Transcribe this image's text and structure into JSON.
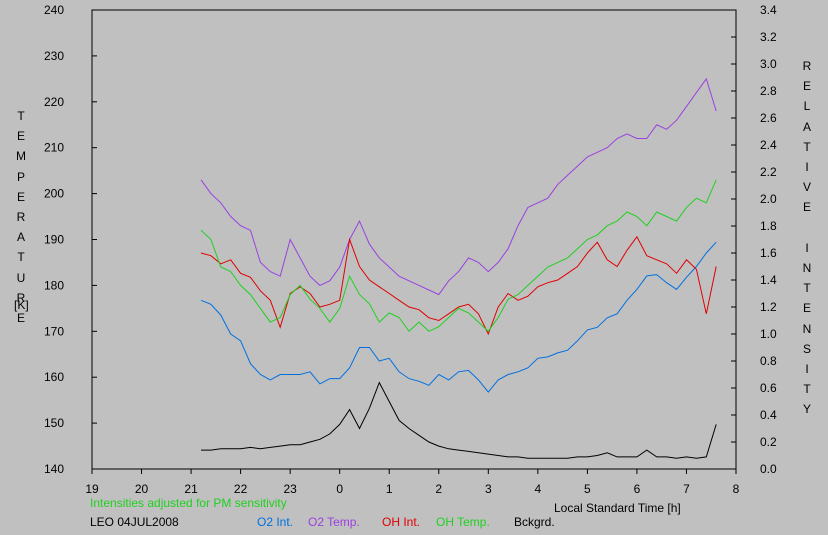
{
  "chart_data": {
    "type": "line",
    "station_label": "LEO 04JUL2008",
    "note": "Intensities adjusted for PM sensitivity",
    "xlabel": "Local Standard Time [h]",
    "ylabel_left": "TEMPERATURE",
    "ylabel_left_unit": "[K]",
    "ylabel_right": "RELATIVE INTENSITY",
    "x_ticks": [
      "19",
      "20",
      "21",
      "22",
      "23",
      "0",
      "1",
      "2",
      "3",
      "4",
      "5",
      "6",
      "7",
      "8"
    ],
    "xlim": [
      19,
      32
    ],
    "ylim_left": [
      140,
      240
    ],
    "ylim_right": [
      0,
      3.4
    ],
    "y_ticks_left": [
      "140",
      "150",
      "160",
      "170",
      "180",
      "190",
      "200",
      "210",
      "220",
      "230",
      "240"
    ],
    "y_ticks_right": [
      "0.0",
      "0.2",
      "0.4",
      "0.6",
      "0.8",
      "1.0",
      "1.2",
      "1.4",
      "1.6",
      "1.8",
      "2.0",
      "2.2",
      "2.4",
      "2.6",
      "2.8",
      "3.0",
      "3.2",
      "3.4"
    ],
    "series": [
      {
        "name": "O2 Int.",
        "axis": "right",
        "color": "#0070e0",
        "x": [
          21.2,
          21.4,
          21.6,
          21.8,
          22.0,
          22.2,
          22.4,
          22.6,
          22.8,
          23.0,
          23.2,
          23.4,
          23.6,
          23.8,
          24.0,
          24.2,
          24.4,
          24.6,
          24.8,
          25.0,
          25.2,
          25.4,
          25.6,
          25.8,
          26.0,
          26.2,
          26.4,
          26.6,
          26.8,
          27.0,
          27.2,
          27.4,
          27.6,
          27.8,
          28.0,
          28.2,
          28.4,
          28.6,
          28.8,
          29.0,
          29.2,
          29.4,
          29.6,
          29.8,
          30.0,
          30.2,
          30.4,
          30.6,
          30.8,
          31.0,
          31.2,
          31.4,
          31.6
        ],
        "y": [
          1.25,
          1.22,
          1.14,
          1.0,
          0.95,
          0.78,
          0.7,
          0.66,
          0.7,
          0.7,
          0.7,
          0.72,
          0.63,
          0.67,
          0.67,
          0.75,
          0.9,
          0.9,
          0.8,
          0.82,
          0.72,
          0.67,
          0.65,
          0.62,
          0.7,
          0.66,
          0.72,
          0.73,
          0.66,
          0.57,
          0.66,
          0.7,
          0.72,
          0.75,
          0.82,
          0.83,
          0.86,
          0.88,
          0.95,
          1.03,
          1.05,
          1.12,
          1.15,
          1.25,
          1.33,
          1.43,
          1.44,
          1.38,
          1.33,
          1.42,
          1.5,
          1.6,
          1.68
        ]
      },
      {
        "name": "O2 Temp.",
        "axis": "left",
        "color": "#9a40e0",
        "x": [
          21.2,
          21.4,
          21.6,
          21.8,
          22.0,
          22.2,
          22.4,
          22.6,
          22.8,
          23.0,
          23.2,
          23.4,
          23.6,
          23.8,
          24.0,
          24.2,
          24.4,
          24.6,
          24.8,
          25.0,
          25.2,
          25.4,
          25.6,
          25.8,
          26.0,
          26.2,
          26.4,
          26.6,
          26.8,
          27.0,
          27.2,
          27.4,
          27.6,
          27.8,
          28.0,
          28.2,
          28.4,
          28.6,
          28.8,
          29.0,
          29.2,
          29.4,
          29.6,
          29.8,
          30.0,
          30.2,
          30.4,
          30.6,
          30.8,
          31.0,
          31.2,
          31.4,
          31.6
        ],
        "y": [
          203,
          200,
          198,
          195,
          193,
          192,
          185,
          183,
          182,
          190,
          186,
          182,
          180,
          181,
          184,
          190,
          194,
          189,
          186,
          184,
          182,
          181,
          180,
          179,
          178,
          181,
          183,
          186,
          185,
          183,
          185,
          188,
          193,
          197,
          198,
          199,
          202,
          204,
          206,
          208,
          209,
          210,
          212,
          213,
          212,
          212,
          215,
          214,
          216,
          219,
          222,
          225,
          218
        ]
      },
      {
        "name": "OH Int.",
        "axis": "right",
        "color": "#e00000",
        "x": [
          21.2,
          21.4,
          21.6,
          21.8,
          22.0,
          22.2,
          22.4,
          22.6,
          22.8,
          23.0,
          23.2,
          23.4,
          23.6,
          23.8,
          24.0,
          24.2,
          24.4,
          24.6,
          24.8,
          25.0,
          25.2,
          25.4,
          25.6,
          25.8,
          26.0,
          26.2,
          26.4,
          26.6,
          26.8,
          27.0,
          27.2,
          27.4,
          27.6,
          27.8,
          28.0,
          28.2,
          28.4,
          28.6,
          28.8,
          29.0,
          29.2,
          29.4,
          29.6,
          29.8,
          30.0,
          30.2,
          30.4,
          30.6,
          30.8,
          31.0,
          31.2,
          31.4,
          31.6
        ],
        "y": [
          1.6,
          1.58,
          1.52,
          1.55,
          1.45,
          1.42,
          1.32,
          1.25,
          1.05,
          1.3,
          1.35,
          1.3,
          1.2,
          1.22,
          1.25,
          1.7,
          1.5,
          1.4,
          1.35,
          1.3,
          1.25,
          1.2,
          1.18,
          1.12,
          1.1,
          1.15,
          1.2,
          1.22,
          1.15,
          1.0,
          1.2,
          1.3,
          1.25,
          1.28,
          1.35,
          1.38,
          1.4,
          1.45,
          1.5,
          1.6,
          1.68,
          1.55,
          1.5,
          1.62,
          1.72,
          1.58,
          1.55,
          1.52,
          1.45,
          1.55,
          1.48,
          1.15,
          1.5
        ]
      },
      {
        "name": "OH Temp.",
        "axis": "left",
        "color": "#20d020",
        "x": [
          21.2,
          21.4,
          21.6,
          21.8,
          22.0,
          22.2,
          22.4,
          22.6,
          22.8,
          23.0,
          23.2,
          23.4,
          23.6,
          23.8,
          24.0,
          24.2,
          24.4,
          24.6,
          24.8,
          25.0,
          25.2,
          25.4,
          25.6,
          25.8,
          26.0,
          26.2,
          26.4,
          26.6,
          26.8,
          27.0,
          27.2,
          27.4,
          27.6,
          27.8,
          28.0,
          28.2,
          28.4,
          28.6,
          28.8,
          29.0,
          29.2,
          29.4,
          29.6,
          29.8,
          30.0,
          30.2,
          30.4,
          30.6,
          30.8,
          31.0,
          31.2,
          31.4,
          31.6
        ],
        "y": [
          192,
          190,
          184,
          183,
          180,
          178,
          175,
          172,
          173,
          178,
          180,
          177,
          175,
          172,
          175,
          182,
          178,
          176,
          172,
          174,
          173,
          170,
          172,
          170,
          171,
          173,
          175,
          174,
          172,
          170,
          173,
          177,
          178,
          180,
          182,
          184,
          185,
          186,
          188,
          190,
          191,
          193,
          194,
          196,
          195,
          193,
          196,
          195,
          194,
          197,
          199,
          198,
          203
        ]
      },
      {
        "name": "Bckgrd.",
        "axis": "right",
        "color": "#000000",
        "x": [
          21.2,
          21.4,
          21.6,
          21.8,
          22.0,
          22.2,
          22.4,
          22.6,
          22.8,
          23.0,
          23.2,
          23.4,
          23.6,
          23.8,
          24.0,
          24.2,
          24.4,
          24.6,
          24.8,
          25.0,
          25.2,
          25.4,
          25.6,
          25.8,
          26.0,
          26.2,
          26.4,
          26.6,
          26.8,
          27.0,
          27.2,
          27.4,
          27.6,
          27.8,
          28.0,
          28.2,
          28.4,
          28.6,
          28.8,
          29.0,
          29.2,
          29.4,
          29.6,
          29.8,
          30.0,
          30.2,
          30.4,
          30.6,
          30.8,
          31.0,
          31.2,
          31.4,
          31.6
        ],
        "y": [
          0.14,
          0.14,
          0.15,
          0.15,
          0.15,
          0.16,
          0.15,
          0.16,
          0.17,
          0.18,
          0.18,
          0.2,
          0.22,
          0.26,
          0.33,
          0.44,
          0.3,
          0.45,
          0.64,
          0.5,
          0.36,
          0.3,
          0.25,
          0.2,
          0.17,
          0.15,
          0.14,
          0.13,
          0.12,
          0.11,
          0.1,
          0.09,
          0.09,
          0.08,
          0.08,
          0.08,
          0.08,
          0.08,
          0.09,
          0.09,
          0.1,
          0.12,
          0.09,
          0.09,
          0.09,
          0.14,
          0.09,
          0.09,
          0.08,
          0.09,
          0.08,
          0.09,
          0.33
        ]
      }
    ]
  }
}
